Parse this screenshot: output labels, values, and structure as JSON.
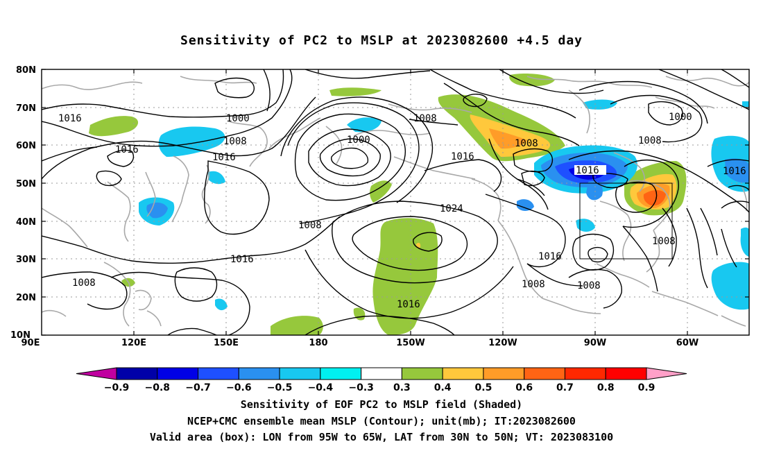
{
  "title": "Sensitivity of PC2 to MSLP at 2023082600 +4.5 day",
  "axes": {
    "lat_ticks": [
      "80N",
      "70N",
      "60N",
      "50N",
      "40N",
      "30N",
      "20N",
      "10N"
    ],
    "lon_ticks": [
      "90E",
      "120E",
      "150E",
      "180",
      "150W",
      "120W",
      "90W",
      "60W"
    ]
  },
  "contour_labels": {
    "c1016_a": "1016",
    "c1000_a": "1000",
    "c1016_b": "1016",
    "c1008_a": "1008",
    "c1016_c": "1016",
    "c1000_b": "1000",
    "c1008_b": "1008",
    "c1008_c": "1008",
    "c1016_d": "1016",
    "c1000_c": "1000",
    "c1008_d": "1008",
    "c1016_e": "1016",
    "c1010_e": "1016",
    "c1024": "1024",
    "c1008_e": "1008",
    "c1016_f": "1016",
    "c1008_f": "1008",
    "c1008_g": "1008",
    "c1016_g": "1016",
    "c1008_h": "1008",
    "c1016_h": "1016",
    "c1008_i": "1008"
  },
  "colorbar": {
    "labels": [
      "-0.9",
      "-0.8",
      "-0.7",
      "-0.6",
      "-0.5",
      "-0.4",
      "-0.3",
      "0.3",
      "0.4",
      "0.5",
      "0.6",
      "0.7",
      "0.8",
      "0.9"
    ],
    "colors": [
      "#c000a0",
      "#0000a8",
      "#0000e6",
      "#1e50ff",
      "#2a90f0",
      "#18c8f0",
      "#00f0f0",
      "#ffffff",
      "#96c83c",
      "#ffc83c",
      "#ff9c28",
      "#ff6414",
      "#ff2800",
      "#ff0000",
      "#ffa0c8"
    ]
  },
  "captions": {
    "line1": "Sensitivity of EOF PC2 to MSLP field (Shaded)",
    "line2": "NCEP+CMC ensemble mean MSLP (Contour); unit(mb); IT:2023082600",
    "line3": "Valid area (box): LON from 95W to 65W, LAT from 30N to 50N; VT: 2023083100"
  }
}
